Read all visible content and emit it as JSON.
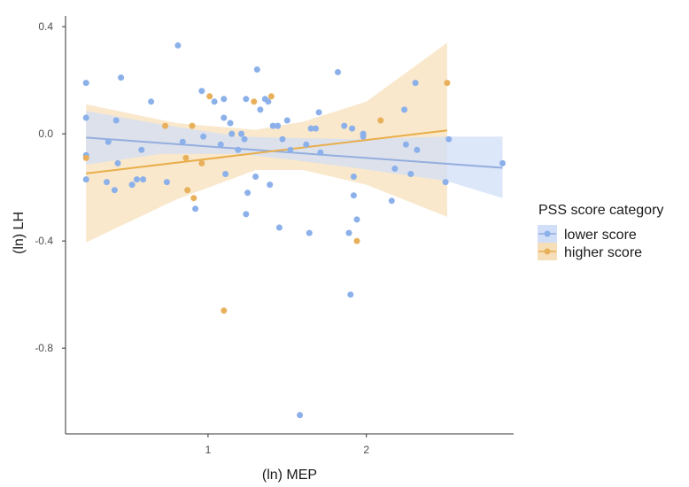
{
  "chart_data": {
    "type": "scatter",
    "title": "",
    "xlabel": "(ln) MEP",
    "ylabel": "(ln) LH",
    "xlim": [
      0.1,
      2.93
    ],
    "ylim": [
      -1.12,
      0.44
    ],
    "x_ticks": [
      1,
      2
    ],
    "x_tick_labels": [
      "1",
      "2"
    ],
    "y_ticks": [
      0.4,
      0.0,
      -0.4,
      -0.8
    ],
    "y_tick_labels": [
      "0.4",
      "0.0",
      "-0.4",
      "-0.8"
    ],
    "grid": false,
    "legend": {
      "title": "PSS score category",
      "placement": "right",
      "entries": [
        "lower score",
        "higher score"
      ]
    },
    "series": [
      {
        "name": "lower score",
        "color": "#8bb0ea",
        "line_color": "#94aede",
        "band_color": "#d0def8",
        "points": [
          [
            0.23,
            0.19
          ],
          [
            0.23,
            0.06
          ],
          [
            0.23,
            -0.08
          ],
          [
            0.23,
            -0.17
          ],
          [
            0.37,
            -0.03
          ],
          [
            0.36,
            -0.18
          ],
          [
            0.41,
            -0.21
          ],
          [
            0.42,
            0.05
          ],
          [
            0.43,
            -0.11
          ],
          [
            0.45,
            0.21
          ],
          [
            0.52,
            -0.19
          ],
          [
            0.55,
            -0.17
          ],
          [
            0.59,
            -0.17
          ],
          [
            0.58,
            -0.06
          ],
          [
            0.64,
            0.12
          ],
          [
            0.74,
            -0.18
          ],
          [
            0.81,
            0.33
          ],
          [
            0.84,
            -0.03
          ],
          [
            0.92,
            -0.28
          ],
          [
            0.96,
            0.16
          ],
          [
            0.97,
            -0.01
          ],
          [
            1.04,
            0.12
          ],
          [
            1.08,
            -0.04
          ],
          [
            1.1,
            0.06
          ],
          [
            1.1,
            0.13
          ],
          [
            1.11,
            -0.15
          ],
          [
            1.14,
            0.04
          ],
          [
            1.15,
            0.0
          ],
          [
            1.19,
            -0.06
          ],
          [
            1.21,
            0.0
          ],
          [
            1.23,
            -0.02
          ],
          [
            1.24,
            0.13
          ],
          [
            1.25,
            -0.22
          ],
          [
            1.24,
            -0.3
          ],
          [
            1.3,
            -0.16
          ],
          [
            1.31,
            0.24
          ],
          [
            1.33,
            0.09
          ],
          [
            1.36,
            0.13
          ],
          [
            1.38,
            0.12
          ],
          [
            1.39,
            -0.19
          ],
          [
            1.41,
            0.03
          ],
          [
            1.44,
            0.03
          ],
          [
            1.45,
            -0.35
          ],
          [
            1.47,
            -0.02
          ],
          [
            1.5,
            0.05
          ],
          [
            1.52,
            -0.06
          ],
          [
            1.58,
            -1.05
          ],
          [
            1.62,
            -0.04
          ],
          [
            1.64,
            -0.37
          ],
          [
            1.65,
            0.02
          ],
          [
            1.68,
            0.02
          ],
          [
            1.7,
            0.08
          ],
          [
            1.71,
            -0.07
          ],
          [
            1.82,
            0.23
          ],
          [
            1.86,
            0.03
          ],
          [
            1.89,
            -0.37
          ],
          [
            1.9,
            -0.6
          ],
          [
            1.91,
            0.02
          ],
          [
            1.92,
            -0.16
          ],
          [
            1.92,
            -0.23
          ],
          [
            1.94,
            -0.32
          ],
          [
            1.98,
            0.0
          ],
          [
            1.98,
            -0.01
          ],
          [
            2.16,
            -0.25
          ],
          [
            2.18,
            -0.13
          ],
          [
            2.24,
            0.09
          ],
          [
            2.25,
            -0.04
          ],
          [
            2.28,
            -0.15
          ],
          [
            2.31,
            0.19
          ],
          [
            2.32,
            -0.06
          ],
          [
            2.5,
            -0.18
          ],
          [
            2.52,
            -0.02
          ],
          [
            2.86,
            -0.11
          ]
        ],
        "fit": {
          "x_start": 0.23,
          "y_start": -0.014,
          "x_end": 2.86,
          "y_end": -0.127
        },
        "band": {
          "x": [
            0.23,
            0.7,
            1.2,
            1.5,
            1.9,
            2.5,
            2.86
          ],
          "lower": [
            -0.115,
            -0.075,
            -0.075,
            -0.095,
            -0.125,
            -0.175,
            -0.24
          ],
          "upper": [
            0.085,
            0.035,
            -0.01,
            -0.015,
            -0.02,
            -0.01,
            -0.01
          ]
        }
      },
      {
        "name": "higher score",
        "color": "#e8b05a",
        "line_color": "#e9ae4a",
        "band_color": "#f6dfb8",
        "points": [
          [
            0.23,
            -0.09
          ],
          [
            0.73,
            0.03
          ],
          [
            0.86,
            -0.09
          ],
          [
            0.87,
            -0.21
          ],
          [
            0.9,
            0.03
          ],
          [
            0.91,
            -0.24
          ],
          [
            0.96,
            -0.11
          ],
          [
            1.01,
            0.14
          ],
          [
            1.1,
            -0.66
          ],
          [
            1.29,
            0.12
          ],
          [
            1.4,
            0.14
          ],
          [
            1.94,
            -0.4
          ],
          [
            2.09,
            0.05
          ],
          [
            2.51,
            0.19
          ]
        ],
        "fit": {
          "x_start": 0.23,
          "y_start": -0.148,
          "x_end": 2.51,
          "y_end": 0.013
        },
        "band": {
          "x": [
            0.23,
            0.8,
            1.3,
            1.6,
            2.0,
            2.51
          ],
          "lower": [
            -0.405,
            -0.245,
            -0.135,
            -0.135,
            -0.19,
            -0.31
          ],
          "upper": [
            0.11,
            0.04,
            0.015,
            0.045,
            0.12,
            0.34
          ]
        }
      }
    ]
  }
}
